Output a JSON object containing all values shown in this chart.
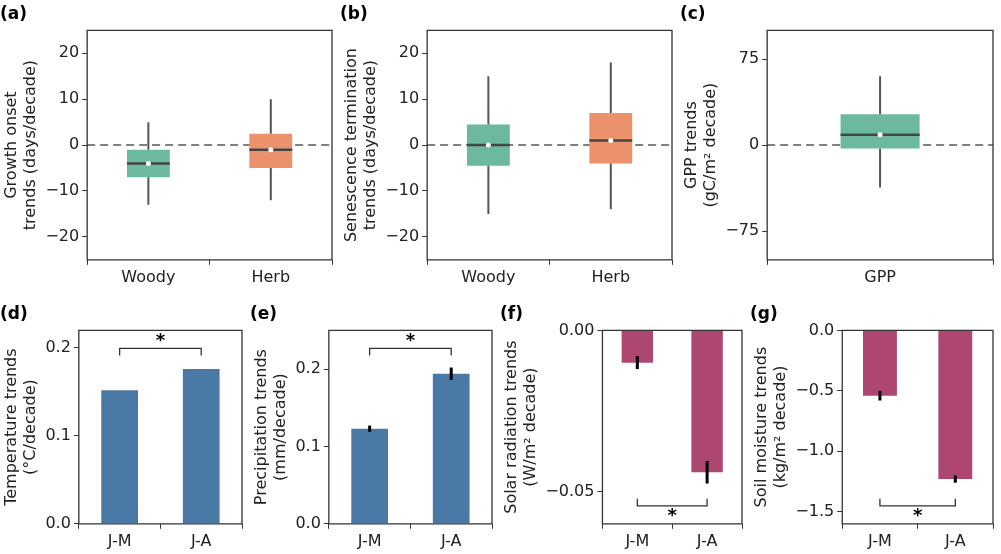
{
  "chart_data": [
    {
      "type": "box",
      "title": "(a)",
      "ylabel": "Growth onset\ntrends (days/decade)",
      "categories": [
        "Woody",
        "Herb"
      ],
      "colors": [
        "#6cb9a0",
        "#eb926c"
      ],
      "boxes": [
        {
          "low": -13,
          "q1": -7,
          "median": -4,
          "q3": -1,
          "high": 5
        },
        {
          "low": -12,
          "q1": -5,
          "median": -1,
          "q3": 2.5,
          "high": 10
        }
      ],
      "ylim": [
        -25,
        25
      ],
      "yticks": [
        -20,
        -10,
        0,
        10,
        20
      ],
      "ref_lines": [
        {
          "axis": "y",
          "value": 0,
          "color": "#808080",
          "line_style": "dashed"
        }
      ]
    },
    {
      "type": "box",
      "title": "(b)",
      "ylabel": "Senescence termination\ntrends (days/decade)",
      "categories": [
        "Woody",
        "Herb"
      ],
      "colors": [
        "#6cb9a0",
        "#eb926c"
      ],
      "boxes": [
        {
          "low": -15,
          "q1": -4.5,
          "median": 0,
          "q3": 4.5,
          "high": 15
        },
        {
          "low": -14,
          "q1": -4,
          "median": 1,
          "q3": 7,
          "high": 18
        }
      ],
      "ylim": [
        -25,
        25
      ],
      "yticks": [
        -20,
        -10,
        0,
        10,
        20
      ],
      "ref_lines": [
        {
          "axis": "y",
          "value": 0,
          "color": "#808080",
          "line_style": "dashed"
        }
      ]
    },
    {
      "type": "box",
      "title": "(c)",
      "ylabel": "GPP trends\n(gC/m² decade)",
      "categories": [
        "GPP"
      ],
      "colors": [
        "#6cb9a0"
      ],
      "boxes": [
        {
          "low": -37,
          "q1": -3,
          "median": 9,
          "q3": 27,
          "high": 60
        }
      ],
      "ylim": [
        -100,
        100
      ],
      "yticks": [
        -75,
        0,
        75
      ],
      "ref_lines": [
        {
          "axis": "y",
          "value": 0,
          "color": "#808080",
          "line_style": "dashed"
        }
      ]
    },
    {
      "type": "bar",
      "title": "(d)",
      "ylabel": "Temperature trends\n(°C/decade)",
      "categories": [
        "J-M",
        "J-A"
      ],
      "values": [
        0.152,
        0.176
      ],
      "color": "#4a79a5",
      "ylim": [
        0,
        0.22
      ],
      "yticks": [
        {
          "value": 0,
          "label": "0.0"
        },
        0.1,
        0.2
      ],
      "annotations": [
        "*"
      ]
    },
    {
      "type": "bar",
      "title": "(e)",
      "ylabel": "Precipitation trends\n(mm/decade)",
      "categories": [
        "J-M",
        "J-A"
      ],
      "values": [
        0.123,
        0.194
      ],
      "errors": [
        0.004,
        0.008
      ],
      "color": "#4a79a5",
      "ylim": [
        0,
        0.25
      ],
      "yticks": [
        {
          "value": 0,
          "label": "0.0"
        },
        0.1,
        0.2
      ],
      "annotations": [
        "*"
      ]
    },
    {
      "type": "bar",
      "title": "(f)",
      "ylabel": "Solar radiation trends\n(W/m² decade)",
      "categories": [
        "J-M",
        "J-A"
      ],
      "values": [
        -0.01,
        -0.044
      ],
      "errors": [
        0.002,
        0.0035
      ],
      "color": "#ad4670",
      "ylim": [
        -0.06,
        0
      ],
      "yticks": [
        {
          "value": -0.05,
          "label": "−0.05"
        },
        {
          "value": 0,
          "label": "0.00"
        }
      ],
      "annotations": [
        "*"
      ]
    },
    {
      "type": "bar",
      "title": "(g)",
      "ylabel": "Soil moisture trends\n(kg/m² decade)",
      "categories": [
        "J-M",
        "J-A"
      ],
      "values": [
        -0.54,
        -1.23
      ],
      "errors": [
        0.04,
        0.03
      ],
      "color": "#ad4670",
      "ylim": [
        -1.6,
        0
      ],
      "yticks": [
        {
          "value": -1.5,
          "label": "−1.5"
        },
        {
          "value": -1,
          "label": "−1.0"
        },
        {
          "value": -0.5,
          "label": "−0.5"
        },
        {
          "value": 0,
          "label": "0.0"
        }
      ],
      "annotations": [
        "*"
      ]
    }
  ]
}
